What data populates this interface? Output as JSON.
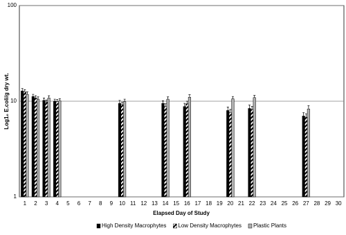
{
  "chart_data": {
    "type": "bar",
    "x_label": "Elapsed Day of Study",
    "y_label": "Log1₀ E.coli/g dry wt.",
    "log_y": true,
    "grid": true,
    "legend": "bottom",
    "categories": [
      "1",
      "2",
      "3",
      "4",
      "5",
      "6",
      "7",
      "8",
      "9",
      "10",
      "11",
      "12",
      "13",
      "14",
      "15",
      "16",
      "17",
      "18",
      "19",
      "20",
      "21",
      "22",
      "23",
      "24",
      "25",
      "26",
      "27",
      "28",
      "29",
      "30"
    ],
    "ylim": [
      1,
      100
    ],
    "yticks": [
      1,
      10,
      100
    ],
    "series": [
      {
        "name": "High Density Macrophytes",
        "color": "#000000",
        "hatch": false,
        "values": [
          12.8,
          11.2,
          10.2,
          10.0,
          null,
          null,
          null,
          null,
          null,
          9.5,
          null,
          null,
          null,
          9.5,
          null,
          8.8,
          null,
          null,
          null,
          8.0,
          null,
          8.4,
          null,
          null,
          null,
          null,
          7.0,
          null,
          null,
          null
        ],
        "errors": [
          0.8,
          0.6,
          0.6,
          0.5,
          null,
          null,
          null,
          null,
          null,
          0.7,
          null,
          null,
          null,
          0.6,
          null,
          0.7,
          null,
          null,
          null,
          0.7,
          null,
          0.7,
          null,
          null,
          null,
          null,
          0.6,
          null,
          null,
          null
        ]
      },
      {
        "name": "Low Density Macrophytes",
        "color": "#000000",
        "hatch": true,
        "values": [
          12.5,
          10.8,
          9.8,
          9.9,
          null,
          null,
          null,
          null,
          null,
          9.2,
          null,
          null,
          null,
          8.8,
          null,
          9.4,
          null,
          null,
          null,
          7.6,
          null,
          8.2,
          null,
          null,
          null,
          null,
          6.8,
          null,
          null,
          null
        ],
        "errors": [
          0.7,
          0.6,
          0.5,
          0.5,
          null,
          null,
          null,
          null,
          null,
          0.6,
          null,
          null,
          null,
          0.6,
          null,
          0.6,
          null,
          null,
          null,
          0.6,
          null,
          0.6,
          null,
          null,
          null,
          null,
          0.6,
          null,
          null,
          null
        ]
      },
      {
        "name": "Plastic Plants",
        "color": "#b0b0b0",
        "hatch": false,
        "values": [
          11.8,
          10.5,
          10.8,
          10.1,
          null,
          null,
          null,
          null,
          null,
          9.9,
          null,
          null,
          null,
          10.5,
          null,
          11.0,
          null,
          null,
          null,
          10.6,
          null,
          10.9,
          null,
          null,
          null,
          null,
          8.3,
          null,
          null,
          null
        ],
        "errors": [
          0.7,
          0.6,
          0.6,
          0.5,
          null,
          null,
          null,
          null,
          null,
          0.6,
          null,
          null,
          null,
          0.6,
          null,
          0.7,
          null,
          null,
          null,
          0.6,
          null,
          0.6,
          null,
          null,
          null,
          null,
          0.7,
          null,
          null,
          null
        ]
      }
    ]
  }
}
